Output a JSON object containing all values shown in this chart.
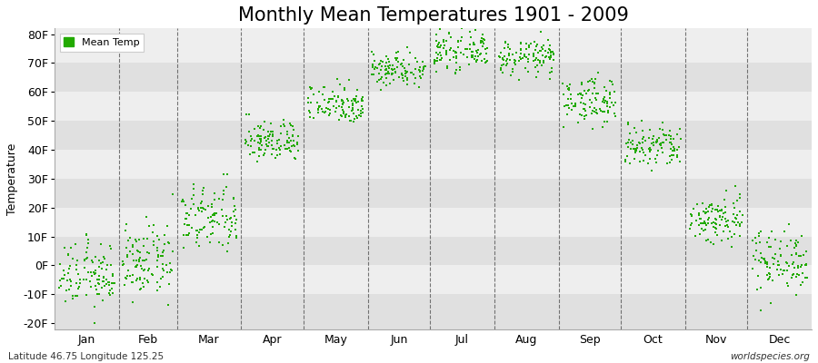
{
  "title": "Monthly Mean Temperatures 1901 - 2009",
  "ylabel": "Temperature",
  "xlabel_bottom_left": "Latitude 46.75 Longitude 125.25",
  "xlabel_bottom_right": "worldspecies.org",
  "legend_label": "Mean Temp",
  "y_ticks": [
    -20,
    -10,
    0,
    10,
    20,
    30,
    40,
    50,
    60,
    70,
    80
  ],
  "y_tick_labels": [
    "-20F",
    "-10F",
    "0F",
    "10F",
    "20F",
    "30F",
    "40F",
    "50F",
    "60F",
    "70F",
    "80F"
  ],
  "ylim": [
    -22,
    82
  ],
  "months": [
    "Jan",
    "Feb",
    "Mar",
    "Apr",
    "May",
    "Jun",
    "Jul",
    "Aug",
    "Sep",
    "Oct",
    "Nov",
    "Dec"
  ],
  "month_days": [
    31,
    28,
    31,
    30,
    31,
    30,
    31,
    31,
    30,
    31,
    30,
    31
  ],
  "marker_color": "#22aa00",
  "marker_size": 4,
  "bg_color": "#ffffff",
  "plot_bg_light": "#eeeeee",
  "plot_bg_dark": "#e0e0e0",
  "title_fontsize": 15,
  "axis_label_fontsize": 9,
  "tick_fontsize": 9,
  "month_means_F": [
    -3.5,
    1.0,
    16.0,
    43.0,
    56.0,
    68.0,
    74.0,
    72.0,
    57.0,
    41.0,
    16.0,
    2.0
  ],
  "month_spreads_F": [
    5.5,
    6.0,
    6.0,
    3.5,
    3.5,
    3.0,
    3.0,
    3.0,
    4.0,
    4.0,
    4.5,
    5.5
  ],
  "n_years": 109
}
